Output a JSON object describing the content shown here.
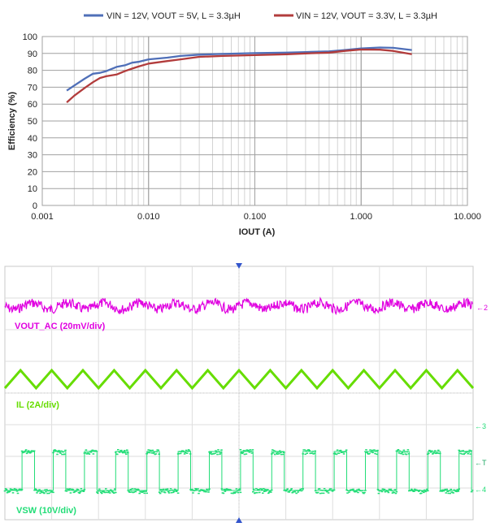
{
  "chart_data": [
    {
      "type": "line",
      "title": "",
      "xlabel": "IOUT (A)",
      "ylabel": "Efficiency (%)",
      "x_scale": "log",
      "xlim": [
        0.001,
        10
      ],
      "ylim": [
        0,
        100
      ],
      "x_tick_labels": [
        "0.001",
        "0.010",
        "0.100",
        "1.000",
        "10.000"
      ],
      "x_tick_values": [
        0.001,
        0.01,
        0.1,
        1,
        10
      ],
      "y_ticks": [
        0,
        10,
        20,
        30,
        40,
        50,
        60,
        70,
        80,
        90,
        100
      ],
      "grid": true,
      "legend_position": "top",
      "series": [
        {
          "name": "VIN = 12V, VOUT = 5V, L = 3.3µH",
          "color": "#4f6fb8",
          "x": [
            0.0017,
            0.002,
            0.0025,
            0.003,
            0.0035,
            0.004,
            0.005,
            0.006,
            0.007,
            0.008,
            0.01,
            0.015,
            0.02,
            0.03,
            0.05,
            0.1,
            0.2,
            0.3,
            0.5,
            0.7,
            1.0,
            1.5,
            2.0,
            3.0
          ],
          "y": [
            68,
            71,
            75,
            78,
            78.5,
            79.5,
            82,
            83,
            84.5,
            85,
            86.5,
            87.5,
            88.5,
            89.3,
            89.7,
            90.2,
            90.5,
            90.8,
            91.2,
            92,
            93,
            93.5,
            93.3,
            92
          ]
        },
        {
          "name": "VIN = 12V, VOUT = 3.3V, L = 3.3µH",
          "color": "#b23c3c",
          "x": [
            0.0017,
            0.002,
            0.0025,
            0.003,
            0.0035,
            0.004,
            0.005,
            0.006,
            0.007,
            0.008,
            0.01,
            0.015,
            0.02,
            0.03,
            0.05,
            0.1,
            0.2,
            0.3,
            0.5,
            0.7,
            1.0,
            1.5,
            2.0,
            3.0
          ],
          "y": [
            61,
            65,
            69.5,
            73,
            75.5,
            76.5,
            77.5,
            79.5,
            81,
            82.2,
            84,
            85.5,
            86.5,
            88,
            88.5,
            89,
            89.5,
            90,
            90.5,
            91.5,
            92.3,
            92.2,
            91.5,
            89.5
          ]
        }
      ]
    },
    {
      "type": "line",
      "subtype": "oscilloscope",
      "title": "",
      "traces": [
        {
          "label": "VOUT_AC (20mV/div)",
          "color": "#e000e0",
          "channel_marker": "2",
          "waveform": "sine_noisy",
          "cycles": 13
        },
        {
          "label": "IL (2A/div)",
          "color": "#66dd00",
          "channel_marker": "",
          "waveform": "triangle",
          "cycles": 15
        },
        {
          "label": "VSW (10V/div)",
          "color": "#22dd77",
          "channel_marker": "4",
          "waveform": "square",
          "cycles": 15,
          "duty": 0.4
        }
      ],
      "markers": {
        "trigger": "T",
        "ch3": "3"
      }
    }
  ]
}
